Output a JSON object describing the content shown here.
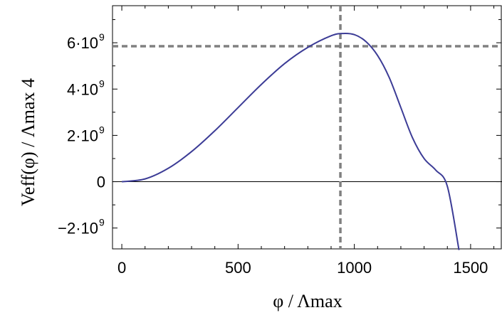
{
  "chart_data": {
    "type": "line",
    "xlabel": "φ / Λmax",
    "ylabel": "Veff(φ) / Λmax 4",
    "xlim": [
      -40,
      1635
    ],
    "ylim": [
      -2900000000.0,
      7600000000.0
    ],
    "x_ticks": [
      {
        "value": 0,
        "label": "0"
      },
      {
        "value": 500,
        "label": "500"
      },
      {
        "value": 1000,
        "label": "1000"
      },
      {
        "value": 1500,
        "label": "1500"
      }
    ],
    "y_ticks": [
      {
        "value": -2000000000.0,
        "label": "−2·10",
        "exp": "9"
      },
      {
        "value": 0,
        "label": "0",
        "exp": ""
      },
      {
        "value": 2000000000.0,
        "label": "2·10",
        "exp": "9"
      },
      {
        "value": 4000000000.0,
        "label": "4·10",
        "exp": "9"
      },
      {
        "value": 6000000000.0,
        "label": "6·10",
        "exp": "9"
      }
    ],
    "series": [
      {
        "color": "#3c3c96",
        "x": [
          0,
          100,
          200,
          300,
          400,
          500,
          600,
          700,
          800,
          900,
          950,
          1000,
          1050,
          1100,
          1150,
          1200,
          1250,
          1300,
          1350,
          1400,
          1450
        ],
        "y": [
          0,
          120000000.0,
          580000000.0,
          1300000000.0,
          2200000000.0,
          3200000000.0,
          4200000000.0,
          5100000000.0,
          5800000000.0,
          6300000000.0,
          6400000000.0,
          6350000000.0,
          6050000000.0,
          5450000000.0,
          4500000000.0,
          3200000000.0,
          1900000000.0,
          1000000000.0,
          500000000.0,
          -200000000.0,
          -2950000000.0
        ]
      }
    ],
    "reference_lines": {
      "vertical_x": 940,
      "horizontal_y": 5850000000.0,
      "style": "dashed",
      "color": "#808080"
    },
    "zero_line": true
  }
}
